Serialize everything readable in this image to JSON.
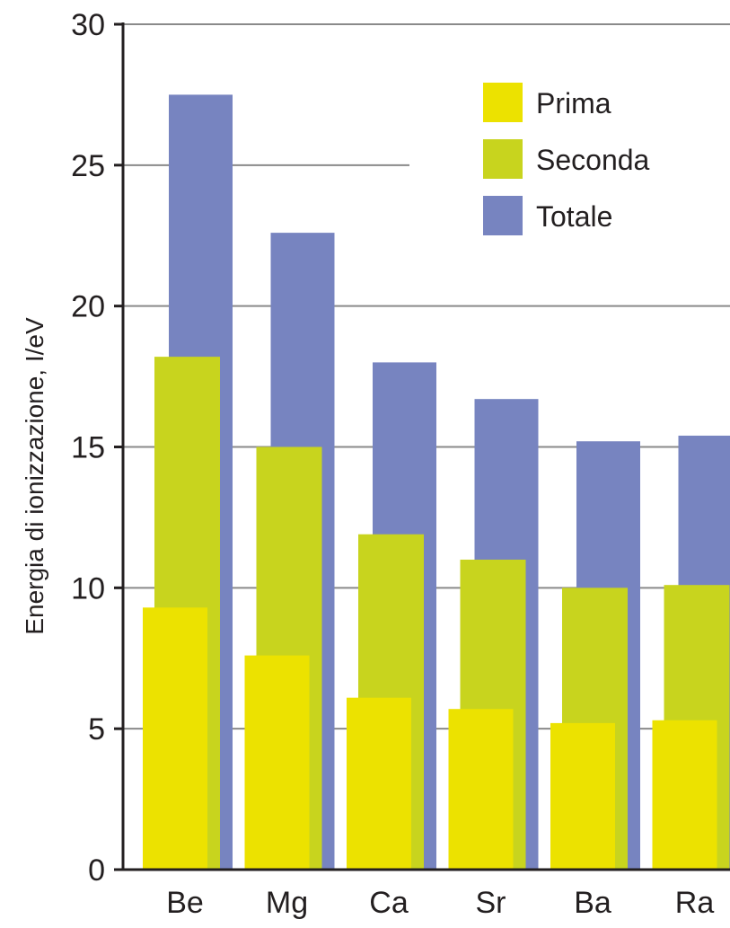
{
  "chart_data": {
    "type": "bar",
    "categories": [
      "Be",
      "Mg",
      "Ca",
      "Sr",
      "Ba",
      "Ra"
    ],
    "series": [
      {
        "name": "Prima",
        "color": "#ece200",
        "values": [
          9.3,
          7.6,
          6.1,
          5.7,
          5.2,
          5.3
        ]
      },
      {
        "name": "Seconda",
        "color": "#c8d41e",
        "values": [
          18.2,
          15.0,
          11.9,
          11.0,
          10.0,
          10.1
        ]
      },
      {
        "name": "Totale",
        "color": "#7784c0",
        "values": [
          27.5,
          22.6,
          18.0,
          16.7,
          15.2,
          15.4
        ]
      }
    ],
    "ylabel": "Energia di ionizzazione, I/eV",
    "ylim": [
      0,
      30
    ],
    "yticks": [
      "0",
      "5",
      "10",
      "15",
      "20",
      "25",
      "30"
    ],
    "grid": true,
    "legend_position": "top-right",
    "axis_color": "#231f20",
    "grid_color": "#8a8a8a"
  }
}
